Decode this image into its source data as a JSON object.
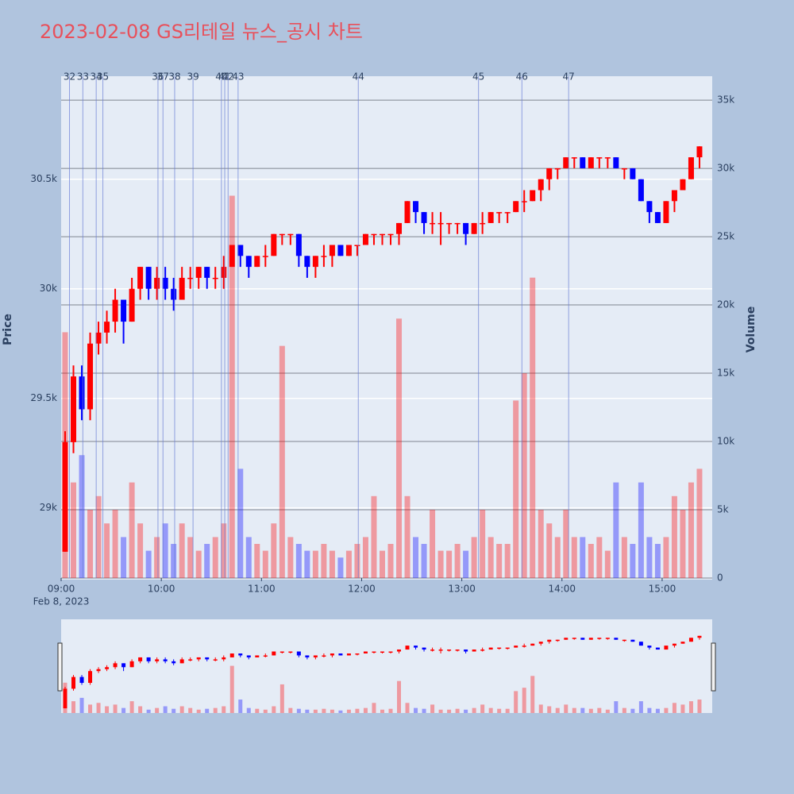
{
  "chart_data": {
    "type": "candlestick",
    "title": "2023-02-08 GS리테일 뉴스_공시 차트",
    "y_label": "Price",
    "y2_label": "Volume",
    "date_label": "Feb 8, 2023",
    "up_color": "#ff0000",
    "down_color": "#0000ff",
    "news_color": "#6b7fd6",
    "x": [
      "09:00",
      "09:05",
      "09:10",
      "09:15",
      "09:20",
      "09:25",
      "09:30",
      "09:35",
      "09:40",
      "09:45",
      "09:50",
      "09:55",
      "10:00",
      "10:05",
      "10:10",
      "10:15",
      "10:20",
      "10:25",
      "10:30",
      "10:35",
      "10:40",
      "10:45",
      "10:50",
      "10:55",
      "11:00",
      "11:05",
      "11:10",
      "11:15",
      "11:20",
      "11:25",
      "11:30",
      "11:35",
      "11:40",
      "11:45",
      "11:50",
      "11:55",
      "12:00",
      "12:05",
      "12:10",
      "12:15",
      "12:20",
      "12:25",
      "12:30",
      "12:35",
      "12:40",
      "12:45",
      "12:50",
      "12:55",
      "13:00",
      "13:05",
      "13:10",
      "13:15",
      "13:20",
      "13:25",
      "13:30",
      "13:35",
      "13:40",
      "13:45",
      "13:50",
      "13:55",
      "14:00",
      "14:05",
      "14:10",
      "14:15",
      "14:20",
      "14:25",
      "14:30",
      "14:35",
      "14:40",
      "14:45",
      "14:50",
      "14:55",
      "15:00",
      "15:05",
      "15:10",
      "15:15",
      "15:20"
    ],
    "open": [
      28800,
      29300,
      29600,
      29450,
      29750,
      29800,
      29850,
      29950,
      29850,
      30000,
      30100,
      30000,
      30050,
      30000,
      29950,
      30050,
      30050,
      30100,
      30050,
      30050,
      30100,
      30200,
      30150,
      30100,
      30150,
      30150,
      30250,
      30250,
      30250,
      30150,
      30100,
      30150,
      30150,
      30200,
      30150,
      30200,
      30200,
      30250,
      30250,
      30250,
      30250,
      30300,
      30400,
      30350,
      30300,
      30300,
      30300,
      30300,
      30300,
      30250,
      30300,
      30300,
      30350,
      30350,
      30350,
      30400,
      30400,
      30450,
      30500,
      30550,
      30550,
      30600,
      30600,
      30550,
      30600,
      30600,
      30600,
      30550,
      30550,
      30500,
      30400,
      30350,
      30300,
      30400,
      30450,
      30500,
      30600
    ],
    "high": [
      29350,
      29650,
      29650,
      29800,
      29850,
      29900,
      30000,
      29950,
      30050,
      30100,
      30100,
      30100,
      30100,
      30050,
      30100,
      30100,
      30100,
      30100,
      30100,
      30150,
      30200,
      30200,
      30150,
      30150,
      30200,
      30250,
      30250,
      30250,
      30250,
      30150,
      30150,
      30200,
      30200,
      30200,
      30200,
      30200,
      30250,
      30250,
      30250,
      30250,
      30300,
      30400,
      30400,
      30350,
      30350,
      30350,
      30300,
      30300,
      30300,
      30300,
      30350,
      30350,
      30350,
      30350,
      30400,
      30450,
      30450,
      30500,
      30550,
      30550,
      30600,
      30600,
      30600,
      30600,
      30600,
      30600,
      30600,
      30550,
      30550,
      30500,
      30400,
      30350,
      30400,
      30450,
      30500,
      30600,
      30650
    ],
    "low": [
      28800,
      29250,
      29400,
      29400,
      29700,
      29750,
      29800,
      29750,
      29850,
      29950,
      29950,
      29950,
      29950,
      29900,
      29950,
      30000,
      30000,
      30000,
      30000,
      30000,
      30100,
      30100,
      30050,
      30100,
      30100,
      30150,
      30200,
      30200,
      30100,
      30050,
      30050,
      30100,
      30100,
      30150,
      30150,
      30150,
      30200,
      30200,
      30200,
      30200,
      30200,
      30300,
      30300,
      30250,
      30250,
      30200,
      30250,
      30250,
      30200,
      30250,
      30250,
      30300,
      30300,
      30300,
      30350,
      30350,
      30400,
      30400,
      30450,
      30500,
      30550,
      30550,
      30550,
      30550,
      30550,
      30550,
      30550,
      30500,
      30500,
      30400,
      30300,
      30300,
      30300,
      30350,
      30450,
      30500,
      30550
    ],
    "close": [
      29300,
      29600,
      29450,
      29750,
      29800,
      29850,
      29950,
      29850,
      30000,
      30100,
      30000,
      30050,
      30000,
      29950,
      30050,
      30050,
      30100,
      30050,
      30050,
      30100,
      30200,
      30150,
      30100,
      30150,
      30150,
      30250,
      30250,
      30250,
      30150,
      30100,
      30150,
      30150,
      30200,
      30150,
      30200,
      30200,
      30250,
      30250,
      30250,
      30250,
      30300,
      30400,
      30350,
      30300,
      30300,
      30300,
      30300,
      30300,
      30250,
      30300,
      30300,
      30350,
      30350,
      30350,
      30400,
      30400,
      30450,
      30500,
      30550,
      30550,
      30600,
      30600,
      30550,
      30600,
      30600,
      30600,
      30550,
      30550,
      30500,
      30400,
      30350,
      30300,
      30400,
      30450,
      30500,
      30600,
      30650
    ],
    "volume": [
      18000,
      7000,
      9000,
      5000,
      6000,
      4000,
      5000,
      3000,
      7000,
      4000,
      2000,
      3000,
      4000,
      2500,
      4000,
      3000,
      2000,
      2500,
      3000,
      4000,
      28000,
      8000,
      3000,
      2500,
      2000,
      4000,
      17000,
      3000,
      2500,
      2000,
      2000,
      2500,
      2000,
      1500,
      2000,
      2500,
      3000,
      6000,
      2000,
      2500,
      19000,
      6000,
      3000,
      2500,
      5000,
      2000,
      2000,
      2500,
      2000,
      3000,
      5000,
      3000,
      2500,
      2500,
      13000,
      15000,
      22000,
      5000,
      4000,
      3000,
      5000,
      3000,
      3000,
      2500,
      3000,
      2000,
      7000,
      3000,
      2500,
      7000,
      3000,
      2500,
      3000,
      6000,
      5000,
      7000,
      8000
    ],
    "xlim": [
      "09:00",
      "15:30"
    ],
    "xticks": [
      "09:00",
      "10:00",
      "11:00",
      "12:00",
      "13:00",
      "14:00",
      "15:00"
    ],
    "ylim": [
      28680,
      30970
    ],
    "yticks": [
      {
        "value": 29000,
        "label": "29k"
      },
      {
        "value": 29500,
        "label": "29.5k"
      },
      {
        "value": 30000,
        "label": "30k"
      },
      {
        "value": 30500,
        "label": "30.5k"
      }
    ],
    "y2lim": [
      0,
      36750
    ],
    "y2ticks": [
      0,
      {
        "value": 5000,
        "label": "5k"
      },
      {
        "value": 10000,
        "label": "10k"
      },
      {
        "value": 15000,
        "label": "15k"
      },
      {
        "value": 20000,
        "label": "20k"
      },
      {
        "value": 25000,
        "label": "25k"
      },
      {
        "value": 30000,
        "label": "30k"
      },
      {
        "value": 35000,
        "label": "35k"
      }
    ],
    "news": {
      "labels": [
        "32",
        "33",
        "34",
        "35",
        "36",
        "37",
        "38",
        "39",
        "40",
        "41",
        "42",
        "43",
        "44",
        "45",
        "46",
        "47"
      ],
      "x": [
        "09:05",
        "09:13",
        "09:21",
        "09:25",
        "09:58",
        "10:01",
        "10:08",
        "10:19",
        "10:36",
        "10:38",
        "10:40",
        "10:46",
        "11:58",
        "13:10",
        "13:36",
        "14:04"
      ]
    }
  }
}
